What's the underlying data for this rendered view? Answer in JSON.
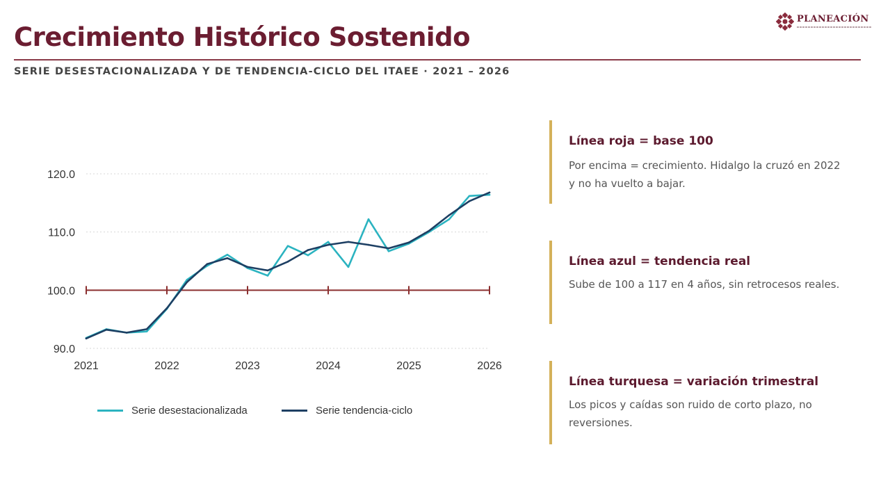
{
  "header": {
    "title": "Crecimiento Histórico Sostenido",
    "subtitle": "SERIE DESESTACIONALIZADA Y DE TENDENCIA-CICLO DEL ITAEE · 2021 – 2026",
    "logo_text": "PLANEACIÓN"
  },
  "colors": {
    "brand": "#6b1d31",
    "seasonally_adjusted": "#2bb3c0",
    "trend_cycle": "#1d3f63",
    "base_line": "#8b2f2f",
    "accent_bar": "#d4b15a"
  },
  "chart_data": {
    "type": "line",
    "xlim": [
      2021,
      2026
    ],
    "ylim": [
      90,
      120
    ],
    "x_ticks": [
      "2021",
      "2022",
      "2023",
      "2024",
      "2025",
      "2026"
    ],
    "y_ticks": [
      "90.0",
      "100.0",
      "110.0",
      "120.0"
    ],
    "grid": true,
    "legend_position": "bottom",
    "reference_line": {
      "value": 100,
      "markers_at": [
        2021,
        2022,
        2023,
        2024,
        2025,
        2026
      ]
    },
    "series": [
      {
        "name": "Serie desestacionalizada",
        "color": "#2bb3c0",
        "x": [
          2021.0,
          2021.25,
          2021.5,
          2021.75,
          2022.0,
          2022.25,
          2022.5,
          2022.75,
          2023.0,
          2023.25,
          2023.5,
          2023.75,
          2024.0,
          2024.25,
          2024.5,
          2024.75,
          2025.0,
          2025.25,
          2025.5,
          2025.75,
          2026.0
        ],
        "values": [
          91.8,
          93.3,
          92.7,
          92.9,
          96.8,
          101.8,
          104.2,
          106.1,
          103.8,
          102.5,
          107.6,
          106.0,
          108.3,
          104.0,
          112.2,
          106.7,
          108.0,
          110.0,
          112.2,
          116.2,
          116.4
        ]
      },
      {
        "name": "Serie tendencia-ciclo",
        "color": "#1d3f63",
        "x": [
          2021.0,
          2021.25,
          2021.5,
          2021.75,
          2022.0,
          2022.25,
          2022.5,
          2022.75,
          2023.0,
          2023.25,
          2023.5,
          2023.75,
          2024.0,
          2024.25,
          2024.5,
          2024.75,
          2025.0,
          2025.25,
          2025.5,
          2025.75,
          2026.0
        ],
        "values": [
          91.7,
          93.2,
          92.7,
          93.3,
          96.9,
          101.4,
          104.5,
          105.5,
          104.0,
          103.4,
          104.9,
          106.9,
          107.8,
          108.3,
          107.8,
          107.2,
          108.2,
          110.2,
          112.9,
          115.3,
          116.8
        ]
      }
    ]
  },
  "notes": [
    {
      "title": "Línea roja = base 100",
      "text": "Por encima = crecimiento. Hidalgo la cruzó en 2022 y no ha vuelto a bajar."
    },
    {
      "title": "Línea azul = tendencia real",
      "text": "Sube de 100 a 117 en 4 años, sin retrocesos reales."
    },
    {
      "title": "Línea turquesa = variación trimestral",
      "text": "Los picos y caídas son ruido de corto plazo, no reversiones."
    }
  ]
}
